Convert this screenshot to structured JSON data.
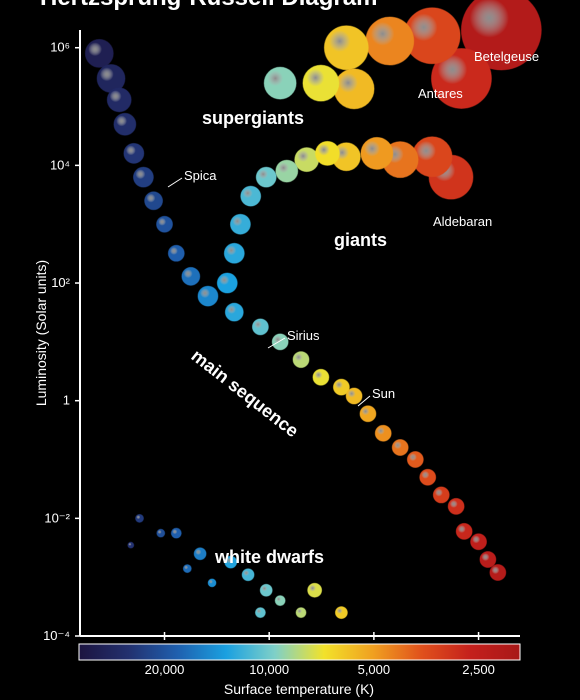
{
  "chart_data": {
    "type": "scatter",
    "title": "Hertzsprung-Russell Diagram",
    "x_label": "Surface temperature (K)",
    "y_label": "Luminosity (Solar units)",
    "xlim": [
      35000,
      1900
    ],
    "ylim": [
      0.0001,
      2000000
    ],
    "log_x": true,
    "log_y": true,
    "xticks": [
      {
        "value": 20000,
        "label": "20,000"
      },
      {
        "value": 10000,
        "label": "10,000"
      },
      {
        "value": 5000,
        "label": "5,000"
      },
      {
        "value": 2500,
        "label": "2,500"
      }
    ],
    "yticks": [
      {
        "value": 0.0001,
        "label": "10⁻⁴"
      },
      {
        "value": 0.01,
        "label": "10⁻²"
      },
      1,
      {
        "value": 100,
        "label": "10²"
      },
      {
        "value": 10000,
        "label": "10⁴"
      },
      {
        "value": 1000000,
        "label": "10⁶"
      }
    ],
    "colormap": [
      "#1c1440",
      "#23306e",
      "#1f5fae",
      "#1aa0e0",
      "#7fd0c8",
      "#f2e22a",
      "#f0a020",
      "#e0501c",
      "#c4201c",
      "#a81818"
    ],
    "series": [
      {
        "name": "main sequence",
        "x": [
          30800,
          28500,
          27000,
          26000,
          24500,
          23000,
          21500,
          20000,
          18500,
          16800,
          15000,
          12600,
          10600,
          9300,
          8100,
          7100,
          6200,
          5700,
          5200,
          4700,
          4200,
          3800,
          3500,
          3200,
          2900,
          2750,
          2500,
          2350,
          2200
        ],
        "values": [
          800000,
          300000,
          130000,
          50000,
          16000,
          6300,
          2500,
          1000,
          320,
          130,
          60,
          32,
          18,
          10,
          5,
          2.5,
          1.7,
          1.2,
          0.6,
          0.28,
          0.16,
          0.1,
          0.05,
          0.025,
          0.016,
          0.006,
          0.004,
          0.002,
          0.0012
        ],
        "sizes": [
          14,
          14,
          12,
          11,
          10,
          10,
          9,
          8,
          8,
          9,
          10,
          9,
          8,
          8,
          8,
          8,
          8,
          8,
          8,
          8,
          8,
          8,
          8,
          8,
          8,
          8,
          8,
          8,
          8
        ]
      },
      {
        "name": "giants",
        "x": [
          13200,
          12600,
          12100,
          11300,
          10200,
          8900,
          7800,
          6800,
          6000,
          4900,
          4200,
          3400,
          3000
        ],
        "values": [
          100,
          320,
          1000,
          3000,
          6300,
          8000,
          12500,
          16000,
          14000,
          16000,
          12500,
          14000,
          6300
        ],
        "sizes": [
          10,
          10,
          10,
          10,
          10,
          11,
          12,
          12,
          14,
          16,
          18,
          20,
          22
        ]
      },
      {
        "name": "supergiants",
        "x": [
          9300,
          7100,
          6000,
          5700,
          4500,
          3400,
          2800,
          2150
        ],
        "values": [
          250000,
          250000,
          1000000,
          200000,
          1300000,
          1600000,
          300000,
          2000000
        ],
        "sizes": [
          16,
          18,
          22,
          20,
          24,
          28,
          30,
          40
        ]
      },
      {
        "name": "white dwarfs",
        "x": [
          23600,
          20500,
          18500,
          15800,
          12900,
          11500,
          10200,
          9300,
          7400,
          8100,
          6200,
          10600,
          14600,
          17200,
          25000
        ],
        "values": [
          0.01,
          0.0056,
          0.0056,
          0.0025,
          0.0018,
          0.0011,
          0.0006,
          0.0004,
          0.0006,
          0.00025,
          0.00025,
          0.00025,
          0.0008,
          0.0014,
          0.0035
        ],
        "sizes": [
          4,
          4,
          5,
          6,
          6,
          6,
          6,
          5,
          7,
          5,
          6,
          5,
          4,
          4,
          3
        ]
      }
    ],
    "annotations": [
      {
        "text": "Betelgeuse"
      },
      {
        "text": "Antares"
      },
      {
        "text": "Aldebaran"
      },
      {
        "text": "Spica"
      },
      {
        "text": "Sirius"
      },
      {
        "text": "Sun"
      }
    ]
  }
}
